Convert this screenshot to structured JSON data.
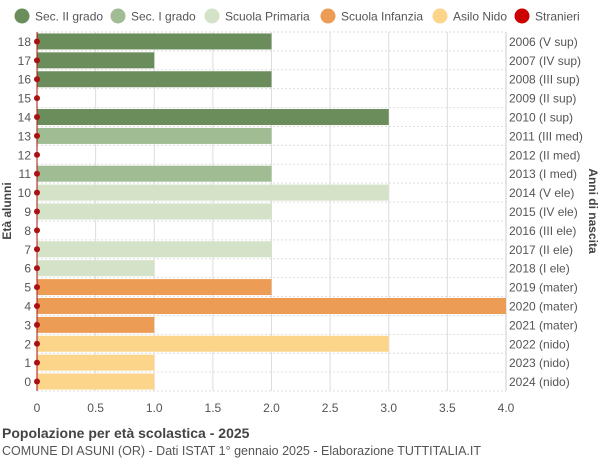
{
  "chart_data": {
    "type": "bar",
    "orientation": "horizontal",
    "title": "Popolazione per età scolastica - 2025",
    "subtitle": "COMUNE DI ASUNI (OR) - Dati ISTAT 1° gennaio 2025 - Elaborazione TUTTITALIA.IT",
    "ylabel": "Età alunni",
    "ylabel_right": "Anni di nascita",
    "xlim": [
      0,
      4.0
    ],
    "xticks": [
      "0",
      "0.5",
      "1.0",
      "1.5",
      "2.0",
      "2.5",
      "3.0",
      "3.5",
      "4.0"
    ],
    "grid": true,
    "legend_placement": "top",
    "legend": [
      {
        "name": "Sec. II grado",
        "color": "#6a8d5b"
      },
      {
        "name": "Sec. I grado",
        "color": "#9fbc93"
      },
      {
        "name": "Scuola Primaria",
        "color": "#d4e2c7"
      },
      {
        "name": "Scuola Infanzia",
        "color": "#ec9c55"
      },
      {
        "name": "Asilo Nido",
        "color": "#fdd58a"
      },
      {
        "name": "Stranieri",
        "color": "#cc0000"
      }
    ],
    "categories": [
      "18",
      "17",
      "16",
      "15",
      "14",
      "13",
      "12",
      "11",
      "10",
      "9",
      "8",
      "7",
      "6",
      "5",
      "4",
      "3",
      "2",
      "1",
      "0"
    ],
    "birth_years": [
      "2006 (V sup)",
      "2007 (IV sup)",
      "2008 (III sup)",
      "2009 (II sup)",
      "2010 (I sup)",
      "2011 (III med)",
      "2012 (II med)",
      "2013 (I med)",
      "2014 (V ele)",
      "2015 (IV ele)",
      "2016 (III ele)",
      "2017 (II ele)",
      "2018 (I ele)",
      "2019 (mater)",
      "2020 (mater)",
      "2021 (mater)",
      "2022 (nido)",
      "2023 (nido)",
      "2024 (nido)"
    ],
    "values": [
      2,
      1,
      2,
      0,
      3,
      2,
      0,
      2,
      3,
      2,
      0,
      2,
      1,
      2,
      4,
      1,
      3,
      1,
      1
    ],
    "series_index": [
      0,
      0,
      0,
      0,
      0,
      1,
      1,
      1,
      2,
      2,
      2,
      2,
      2,
      3,
      3,
      3,
      4,
      4,
      4
    ],
    "stranieri": [
      0,
      0,
      0,
      0,
      0,
      0,
      0,
      0,
      0,
      0,
      0,
      0,
      0,
      0,
      0,
      0,
      0,
      0,
      0
    ]
  }
}
